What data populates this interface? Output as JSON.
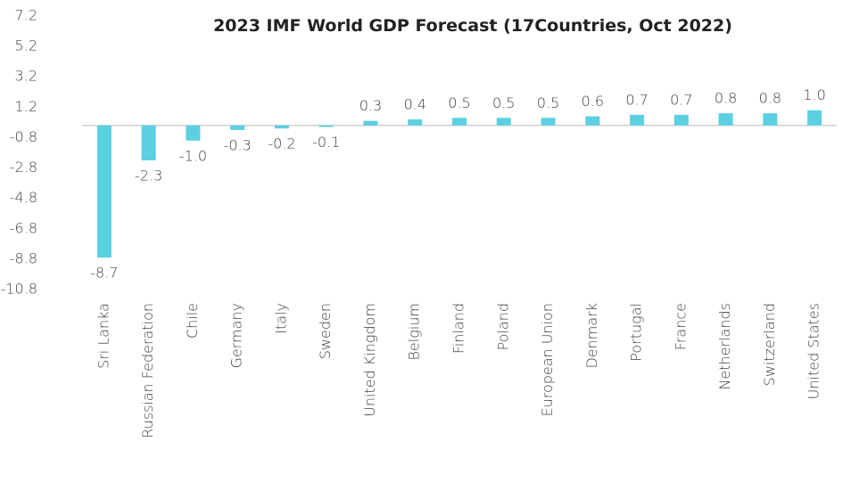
{
  "chart_data": {
    "type": "bar",
    "title": "2023 IMF World GDP Forecast (17Countries, Oct 2022)",
    "categories": [
      "Sri Lanka",
      "Russian Federation",
      "Chile",
      "Germany",
      "Italy",
      "Sweden",
      "United Kingdom",
      "Belgium",
      "Finland",
      "Poland",
      "European Union",
      "Denmark",
      "Portugal",
      "France",
      "Netherlands",
      "Switzerland",
      "United States"
    ],
    "values": [
      -8.7,
      -2.3,
      -1.0,
      -0.3,
      -0.2,
      -0.1,
      0.3,
      0.4,
      0.5,
      0.5,
      0.5,
      0.6,
      0.7,
      0.7,
      0.8,
      0.8,
      1.0
    ],
    "value_labels": [
      "-8.7",
      "-2.3",
      "-1.0",
      "-0.3",
      "-0.2",
      "-0.1",
      "0.3",
      "0.4",
      "0.5",
      "0.5",
      "0.5",
      "0.6",
      "0.7",
      "0.7",
      "0.8",
      "0.8",
      "1.0"
    ],
    "color": "#5bd0e0",
    "ylim": [
      -10.8,
      7.2
    ],
    "yticks": [
      7.2,
      5.2,
      3.2,
      1.2,
      -0.8,
      -2.8,
      -4.8,
      -6.8,
      -8.8,
      -10.8
    ],
    "grid": false
  }
}
